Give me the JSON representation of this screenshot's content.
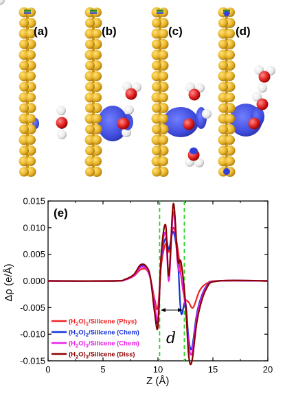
{
  "panels": [
    {
      "label": "(a)"
    },
    {
      "label": "(b)"
    },
    {
      "label": "(c)"
    },
    {
      "label": "(d)"
    }
  ],
  "colors": {
    "silicon": "#E8B428",
    "oxygen": "#E02020",
    "hydrogen": "#EFEFEF",
    "density_blue": "#3340D8",
    "guide_green": "#2BD42B"
  },
  "chart_data": {
    "type": "line",
    "panel_label": "(e)",
    "xlabel": "Z (Å)",
    "ylabel": "Δρ (e/Å)",
    "xlim": [
      0,
      20
    ],
    "ylim": [
      -0.015,
      0.015
    ],
    "x_ticks": [
      0,
      5,
      10,
      15,
      20
    ],
    "x_tick_labels": [
      "0",
      "5",
      "10",
      "15",
      "20"
    ],
    "y_ticks": [
      -0.015,
      -0.01,
      -0.005,
      0.0,
      0.005,
      0.01,
      0.015
    ],
    "y_tick_labels": [
      "-0.015",
      "-0.010",
      "-0.005",
      "0.000",
      "0.005",
      "0.010",
      "0.015"
    ],
    "annotation": "d",
    "guide_lines_x": [
      10.15,
      12.4
    ],
    "legend_position": "bottom-left",
    "series": [
      {
        "name": "(H2O)1/Silicene (Phys)",
        "label_parts": [
          "(H",
          "2",
          "O)",
          "1",
          "/Silicene (Phys)"
        ],
        "color": "#EE2222",
        "x": [
          0,
          6,
          7,
          7.8,
          8.4,
          8.9,
          9.3,
          9.7,
          10.0,
          10.3,
          10.7,
          11.0,
          11.4,
          11.8,
          12.1,
          12.4,
          12.8,
          13.2,
          13.8,
          14.5,
          15.5,
          20
        ],
        "y": [
          0,
          0,
          0.0002,
          0.0009,
          0.0021,
          0.0022,
          0.0006,
          -0.0035,
          -0.005,
          0.003,
          0.007,
          0.0055,
          0.01,
          0.006,
          0.001,
          -0.003,
          -0.004,
          -0.005,
          -0.0018,
          -0.0004,
          0,
          0
        ]
      },
      {
        "name": "(H2O)2/Silicene (Chem)",
        "label_parts": [
          "(H",
          "2",
          "O)",
          "2",
          "/Silicene (Chem)"
        ],
        "color": "#1530D8",
        "x": [
          0,
          6,
          7,
          7.8,
          8.4,
          8.9,
          9.3,
          9.7,
          10.0,
          10.3,
          10.7,
          11.0,
          11.4,
          11.8,
          12.1,
          12.5,
          12.8,
          13.1,
          13.6,
          14.4,
          15.5,
          20
        ],
        "y": [
          0,
          0,
          0.0002,
          0.0011,
          0.0027,
          0.0026,
          0.0006,
          -0.005,
          -0.0075,
          0.004,
          0.008,
          0.006,
          0.0092,
          0.004,
          -0.006,
          -0.004,
          -0.011,
          -0.0125,
          -0.0055,
          -0.001,
          0,
          0
        ]
      },
      {
        "name": "(H2O)3/Silicene (Chem)",
        "label_parts": [
          "(H",
          "2",
          "O)",
          "3",
          "/Silicene (Chem)"
        ],
        "color": "#E820E8",
        "x": [
          0,
          6,
          7,
          7.8,
          8.4,
          8.9,
          9.3,
          9.7,
          10.0,
          10.3,
          10.7,
          11.0,
          11.4,
          11.8,
          12.1,
          12.5,
          12.8,
          13.1,
          13.6,
          14.4,
          15.5,
          20
        ],
        "y": [
          0,
          0,
          0.0002,
          0.001,
          0.0025,
          0.0024,
          0.0005,
          -0.0045,
          -0.007,
          0.0045,
          0.009,
          0.0,
          0.013,
          0.003,
          0.001,
          -0.005,
          -0.012,
          -0.0135,
          -0.006,
          -0.0012,
          0,
          0
        ]
      },
      {
        "name": "(H2O)3/Silicene (Diss)",
        "label_parts": [
          "(H",
          "2",
          "O)",
          "3",
          "/Silicene (Diss)"
        ],
        "color": "#8B0000",
        "x": [
          0,
          6,
          7,
          7.8,
          8.4,
          8.9,
          9.3,
          9.7,
          10.0,
          10.3,
          10.7,
          11.0,
          11.4,
          11.8,
          12.1,
          12.5,
          12.8,
          13.1,
          13.6,
          14.4,
          15.5,
          20
        ],
        "y": [
          0,
          0,
          0.0003,
          0.0012,
          0.003,
          0.0028,
          0.0008,
          -0.006,
          -0.0085,
          0.005,
          0.0105,
          0.001,
          0.0145,
          0.004,
          0.0035,
          -0.004,
          -0.014,
          -0.015,
          -0.007,
          -0.0015,
          0,
          0
        ]
      }
    ]
  }
}
